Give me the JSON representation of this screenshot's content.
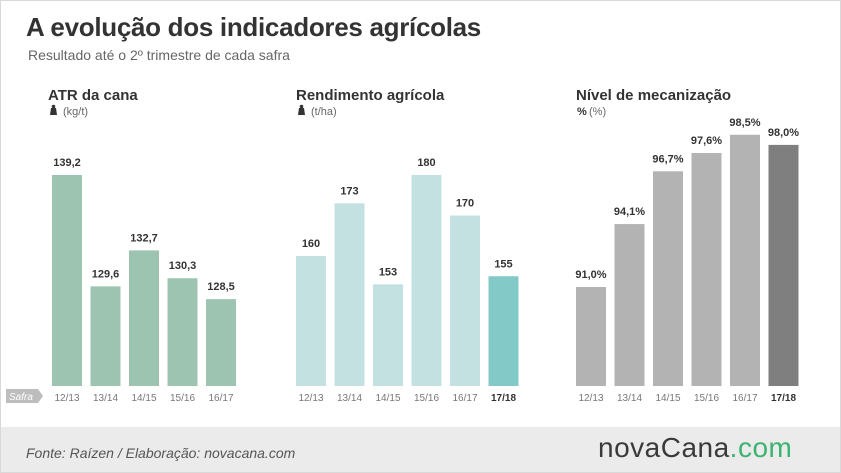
{
  "header": {
    "title": "A evolução dos indicadores agrícolas",
    "subtitle": "Resultado até o 2º trimestre de cada safra"
  },
  "footer": {
    "source": "Fonte: Raízen / Elaboração: novacana.com",
    "logo_main": "novaCana",
    "logo_dot": ".",
    "logo_com": "com"
  },
  "axis_label": "Safra",
  "chart_data": [
    {
      "type": "bar",
      "title": "ATR da cana",
      "unit": "(kg/t)",
      "unit_icon": "weight-icon",
      "categories": [
        "12/13",
        "13/14",
        "14/15",
        "15/16",
        "16/17"
      ],
      "values": [
        139.2,
        129.6,
        132.7,
        130.3,
        128.5
      ],
      "labels": [
        "139,2",
        "129,6",
        "132,7",
        "130,3",
        "128,5"
      ],
      "colors": [
        "#9dc4b1",
        "#9dc4b1",
        "#9dc4b1",
        "#9dc4b1",
        "#9dc4b1"
      ],
      "highlight_last": false
    },
    {
      "type": "bar",
      "title": "Rendimento agrícola",
      "unit": "(t/ha)",
      "unit_icon": "weight-icon",
      "categories": [
        "12/13",
        "13/14",
        "14/15",
        "15/16",
        "16/17",
        "17/18"
      ],
      "values": [
        160,
        173,
        153,
        180,
        170,
        155
      ],
      "labels": [
        "160",
        "173",
        "153",
        "180",
        "170",
        "155"
      ],
      "colors": [
        "#c3e1e0",
        "#c3e1e0",
        "#c3e1e0",
        "#c3e1e0",
        "#c3e1e0",
        "#82c9c8"
      ],
      "highlight_last": true
    },
    {
      "type": "bar",
      "title": "Nível de mecanização",
      "unit": "(%)",
      "unit_icon": "percent-icon",
      "categories": [
        "12/13",
        "13/14",
        "14/15",
        "15/16",
        "16/17",
        "17/18"
      ],
      "values": [
        91.0,
        94.1,
        96.7,
        97.6,
        98.5,
        98.0
      ],
      "labels": [
        "91,0%",
        "94,1%",
        "96,7%",
        "97,6%",
        "98,5%",
        "98,0%"
      ],
      "colors": [
        "#b3b3b3",
        "#b3b3b3",
        "#b3b3b3",
        "#b3b3b3",
        "#b3b3b3",
        "#7f7f7f"
      ],
      "highlight_last": true
    }
  ]
}
